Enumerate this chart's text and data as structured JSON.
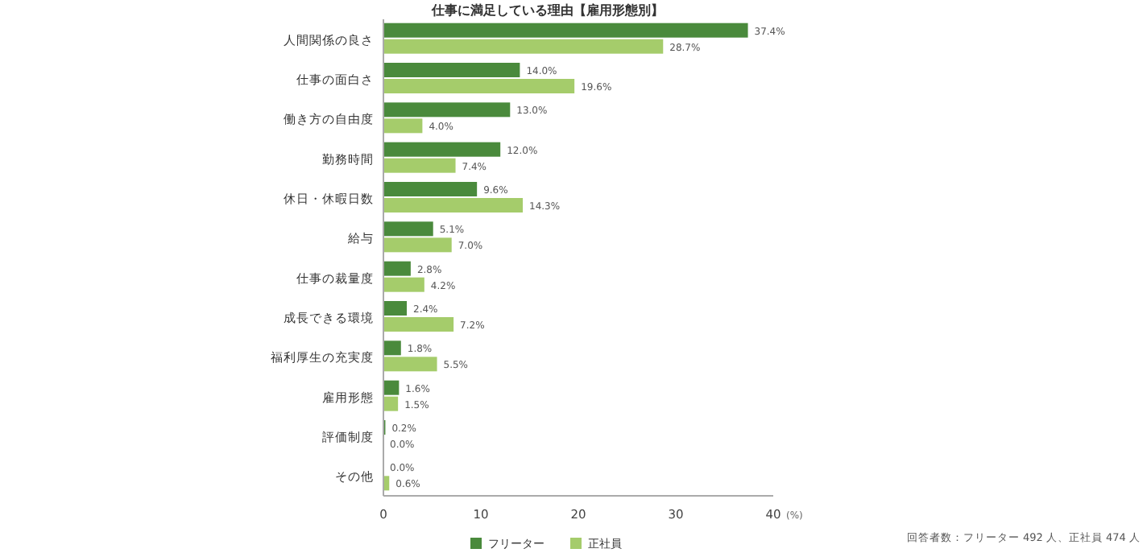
{
  "chart_data": {
    "type": "bar",
    "orientation": "horizontal",
    "title": "仕事に満足している理由【雇用形態別】",
    "xlabel": "(%)",
    "categories": [
      "人間関係の良さ",
      "仕事の面白さ",
      "働き方の自由度",
      "勤務時間",
      "休日・休暇日数",
      "給与",
      "仕事の裁量度",
      "成長できる環境",
      "福利厚生の充実度",
      "雇用形態",
      "評価制度",
      "その他"
    ],
    "series": [
      {
        "name": "フリーター",
        "color": "#4a8a3c",
        "values": [
          37.4,
          14.0,
          13.0,
          12.0,
          9.6,
          5.1,
          2.8,
          2.4,
          1.8,
          1.6,
          0.2,
          0.0
        ],
        "value_labels": [
          "37.4%",
          "14.0%",
          "13.0%",
          "12.0%",
          "9.6%",
          "5.1%",
          "2.8%",
          "2.4%",
          "1.8%",
          "1.6%",
          "0.2%",
          "0.0%"
        ]
      },
      {
        "name": "正社員",
        "color": "#a5cc6b",
        "values": [
          28.7,
          19.6,
          4.0,
          7.4,
          14.3,
          7.0,
          4.2,
          7.2,
          5.5,
          1.5,
          0.0,
          0.6
        ],
        "value_labels": [
          "28.7%",
          "19.6%",
          "4.0%",
          "7.4%",
          "14.3%",
          "7.0%",
          "4.2%",
          "7.2%",
          "5.5%",
          "1.5%",
          "0.0%",
          "0.6%"
        ]
      }
    ],
    "xlim": [
      0,
      40
    ],
    "xticks": [
      0,
      10,
      20,
      30,
      40
    ],
    "grid": false,
    "legend": "bottom",
    "annotations": [
      "回答者数：フリーター 492 人、正社員 474 人"
    ]
  }
}
